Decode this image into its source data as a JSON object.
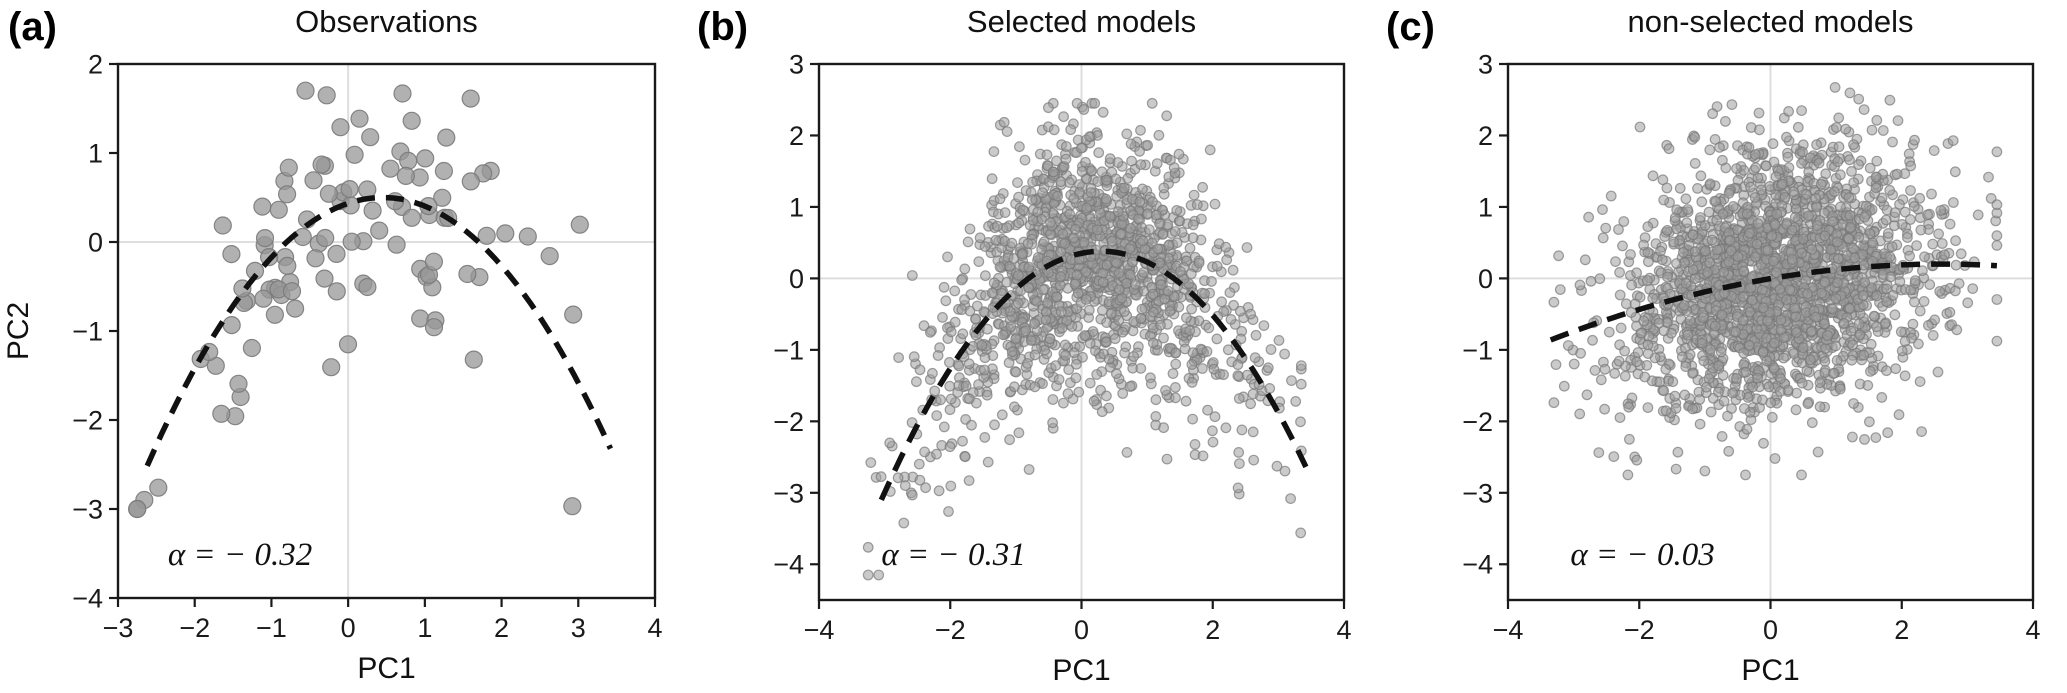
{
  "figure": {
    "background": "#ffffff",
    "grid_color": "#dedede",
    "spine_color": "#1a1a1a",
    "trend_color": "#111111"
  },
  "chart_data": [
    {
      "type": "scatter",
      "panel_label": "(a)",
      "title": "Observations",
      "xlabel": "PC1",
      "ylabel": "PC2",
      "xlim": [
        -3,
        4
      ],
      "ylim": [
        -4,
        2
      ],
      "xticks": [
        -3,
        -2,
        -1,
        0,
        1,
        2,
        3,
        4
      ],
      "yticks": [
        -4,
        -3,
        -2,
        -1,
        0,
        1,
        2
      ],
      "grid": {
        "x": [
          0
        ],
        "y": [
          0
        ]
      },
      "alpha": -0.32,
      "annotation": {
        "text": "α = − 0.32",
        "x": -2.35,
        "y": -3.5
      },
      "trend_curve": {
        "style": "dashed",
        "color": "#111111",
        "alpha": -0.32,
        "vertex": [
          0.45,
          0.5
        ],
        "x_range": [
          -2.62,
          3.42
        ],
        "stroke_width": 5.5,
        "dash": "18 11"
      },
      "points": {
        "n": 110,
        "seed": 11,
        "x_mean": 0.1,
        "x_sd": 1.25,
        "x_clip": [
          -2.75,
          3.1
        ],
        "y_noise_sd": 0.72,
        "y_clip": [
          -3.0,
          1.7
        ],
        "marker_radius": 8.5,
        "fill": "#979797",
        "stroke": "#7a7a7a",
        "fill_opacity": 0.75,
        "stroke_opacity": 0.9
      }
    },
    {
      "type": "scatter",
      "panel_label": "(b)",
      "title": "Selected models",
      "xlabel": "PC1",
      "ylabel": "",
      "xlim": [
        -4,
        4
      ],
      "ylim": [
        -4.5,
        3
      ],
      "xticks": [
        -4,
        -2,
        0,
        2,
        4
      ],
      "yticks": [
        -4,
        -3,
        -2,
        -1,
        0,
        1,
        2,
        3
      ],
      "grid": {
        "x": [
          0
        ],
        "y": [
          0
        ]
      },
      "alpha": -0.31,
      "annotation": {
        "text": "α = − 0.31",
        "x": -3.05,
        "y": -3.85
      },
      "trend_curve": {
        "style": "dashed",
        "color": "#111111",
        "alpha": -0.31,
        "vertex": [
          0.3,
          0.38
        ],
        "x_range": [
          -3.05,
          3.42
        ],
        "stroke_width": 5.5,
        "dash": "20 12"
      },
      "points": {
        "n": 1500,
        "seed": 23,
        "x_mean": 0.05,
        "x_sd": 1.15,
        "x_clip": [
          -3.25,
          3.35
        ],
        "y_noise_sd": 0.85,
        "y_clip": [
          -4.15,
          2.45
        ],
        "marker_radius": 4.8,
        "fill": "#9e9e9e",
        "stroke": "#777777",
        "fill_opacity": 0.55,
        "stroke_opacity": 0.7
      }
    },
    {
      "type": "scatter",
      "panel_label": "(c)",
      "title": "non-selected models",
      "xlabel": "PC1",
      "ylabel": "",
      "xlim": [
        -4,
        4
      ],
      "ylim": [
        -4.5,
        3
      ],
      "xticks": [
        -4,
        -2,
        0,
        2,
        4
      ],
      "yticks": [
        -4,
        -3,
        -2,
        -1,
        0,
        1,
        2,
        3
      ],
      "grid": {
        "x": [
          0
        ],
        "y": [
          0
        ]
      },
      "alpha": -0.03,
      "annotation": {
        "text": "α = − 0.03",
        "x": -3.05,
        "y": -3.85
      },
      "trend_curve": {
        "style": "dashed",
        "color": "#111111",
        "alpha": -0.03,
        "vertex": [
          2.6,
          0.2
        ],
        "x_range": [
          -3.35,
          3.45
        ],
        "stroke_width": 5.5,
        "dash": "19 11"
      },
      "points": {
        "n": 2300,
        "seed": 37,
        "x_mean": 0.1,
        "x_sd": 1.15,
        "x_clip": [
          -3.3,
          3.45
        ],
        "y_noise_sd": 0.85,
        "y_clip": [
          -2.75,
          2.7
        ],
        "marker_radius": 4.8,
        "fill": "#9e9e9e",
        "stroke": "#777777",
        "fill_opacity": 0.55,
        "stroke_opacity": 0.7
      }
    }
  ]
}
